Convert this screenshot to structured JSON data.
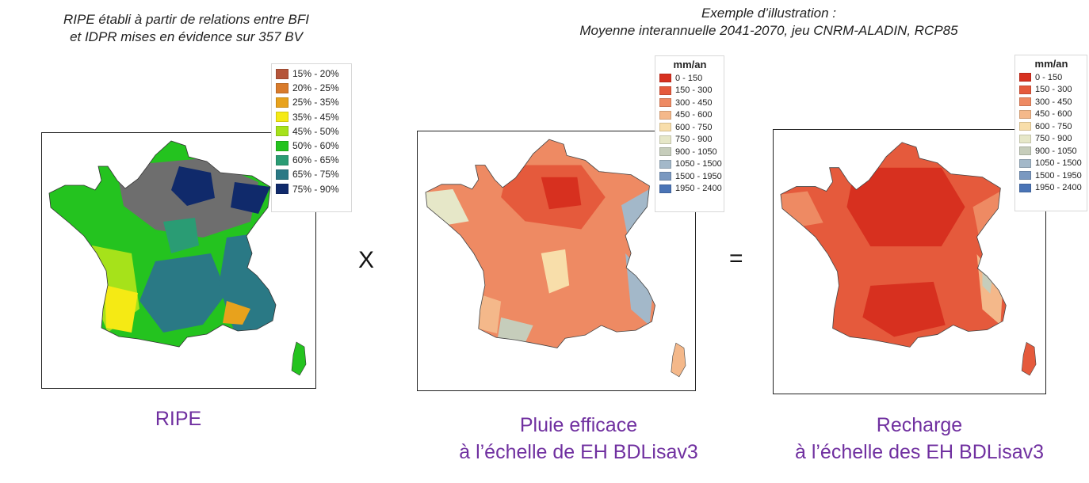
{
  "captions": {
    "ripe_line1": "RIPE établi à partir de relations entre BFI",
    "ripe_line2": "et IDPR mises en évidence sur 357 BV",
    "example_line1": "Exemple d’illustration :",
    "example_line2": "Moyenne interannuelle 2041-2070, jeu CNRM-ALADIN, RCP85"
  },
  "legend_ripe": {
    "items": [
      {
        "label": "15% - 20%",
        "color": "#b5553a"
      },
      {
        "label": "20% - 25%",
        "color": "#d97b2b"
      },
      {
        "label": "25% - 35%",
        "color": "#e8a21c"
      },
      {
        "label": "35% - 45%",
        "color": "#f5ea14"
      },
      {
        "label": "45% - 50%",
        "color": "#a6e21a"
      },
      {
        "label": "50% - 60%",
        "color": "#24c31f"
      },
      {
        "label": "60% - 65%",
        "color": "#2a9c74"
      },
      {
        "label": "65% - 75%",
        "color": "#2a7985"
      },
      {
        "label": "75% - 90%",
        "color": "#102a6b"
      }
    ]
  },
  "legend_pluie": {
    "unit": "mm/an",
    "items": [
      {
        "label": "0 - 150",
        "color": "#d7301f"
      },
      {
        "label": "150 - 300",
        "color": "#e55a3c"
      },
      {
        "label": "300 - 450",
        "color": "#ee8a63"
      },
      {
        "label": "450 - 600",
        "color": "#f4b88a"
      },
      {
        "label": "600 - 750",
        "color": "#f8deaa"
      },
      {
        "label": "750 - 900",
        "color": "#e6e7c8"
      },
      {
        "label": "900 - 1050",
        "color": "#c6cdbb"
      },
      {
        "label": "1050 - 1500",
        "color": "#a3b8c9"
      },
      {
        "label": "1500 - 1950",
        "color": "#7a98c0"
      },
      {
        "label": "1950 - 2400",
        "color": "#4a74b6"
      }
    ]
  },
  "legend_recharge": {
    "unit": "mm/an",
    "items": [
      {
        "label": "0 - 150",
        "color": "#d7301f"
      },
      {
        "label": "150 - 300",
        "color": "#e55a3c"
      },
      {
        "label": "300 - 450",
        "color": "#ee8a63"
      },
      {
        "label": "450 - 600",
        "color": "#f4b88a"
      },
      {
        "label": "600 - 750",
        "color": "#f8deaa"
      },
      {
        "label": "750 - 900",
        "color": "#e6e7c8"
      },
      {
        "label": "900 - 1050",
        "color": "#c6cdbb"
      },
      {
        "label": "1050 - 1500",
        "color": "#a3b8c9"
      },
      {
        "label": "1500 - 1950",
        "color": "#7a98c0"
      },
      {
        "label": "1950 - 2400",
        "color": "#4a74b6"
      }
    ]
  },
  "operators": {
    "multiply": "X",
    "equals": "="
  },
  "labels": {
    "ripe": "RIPE",
    "pluie_line1": "Pluie efficace",
    "pluie_line2": "à l’échelle de EH BDLisav3",
    "recharge_line1": "Recharge",
    "recharge_line2": "à l’échelle des EH BDLisav3"
  }
}
